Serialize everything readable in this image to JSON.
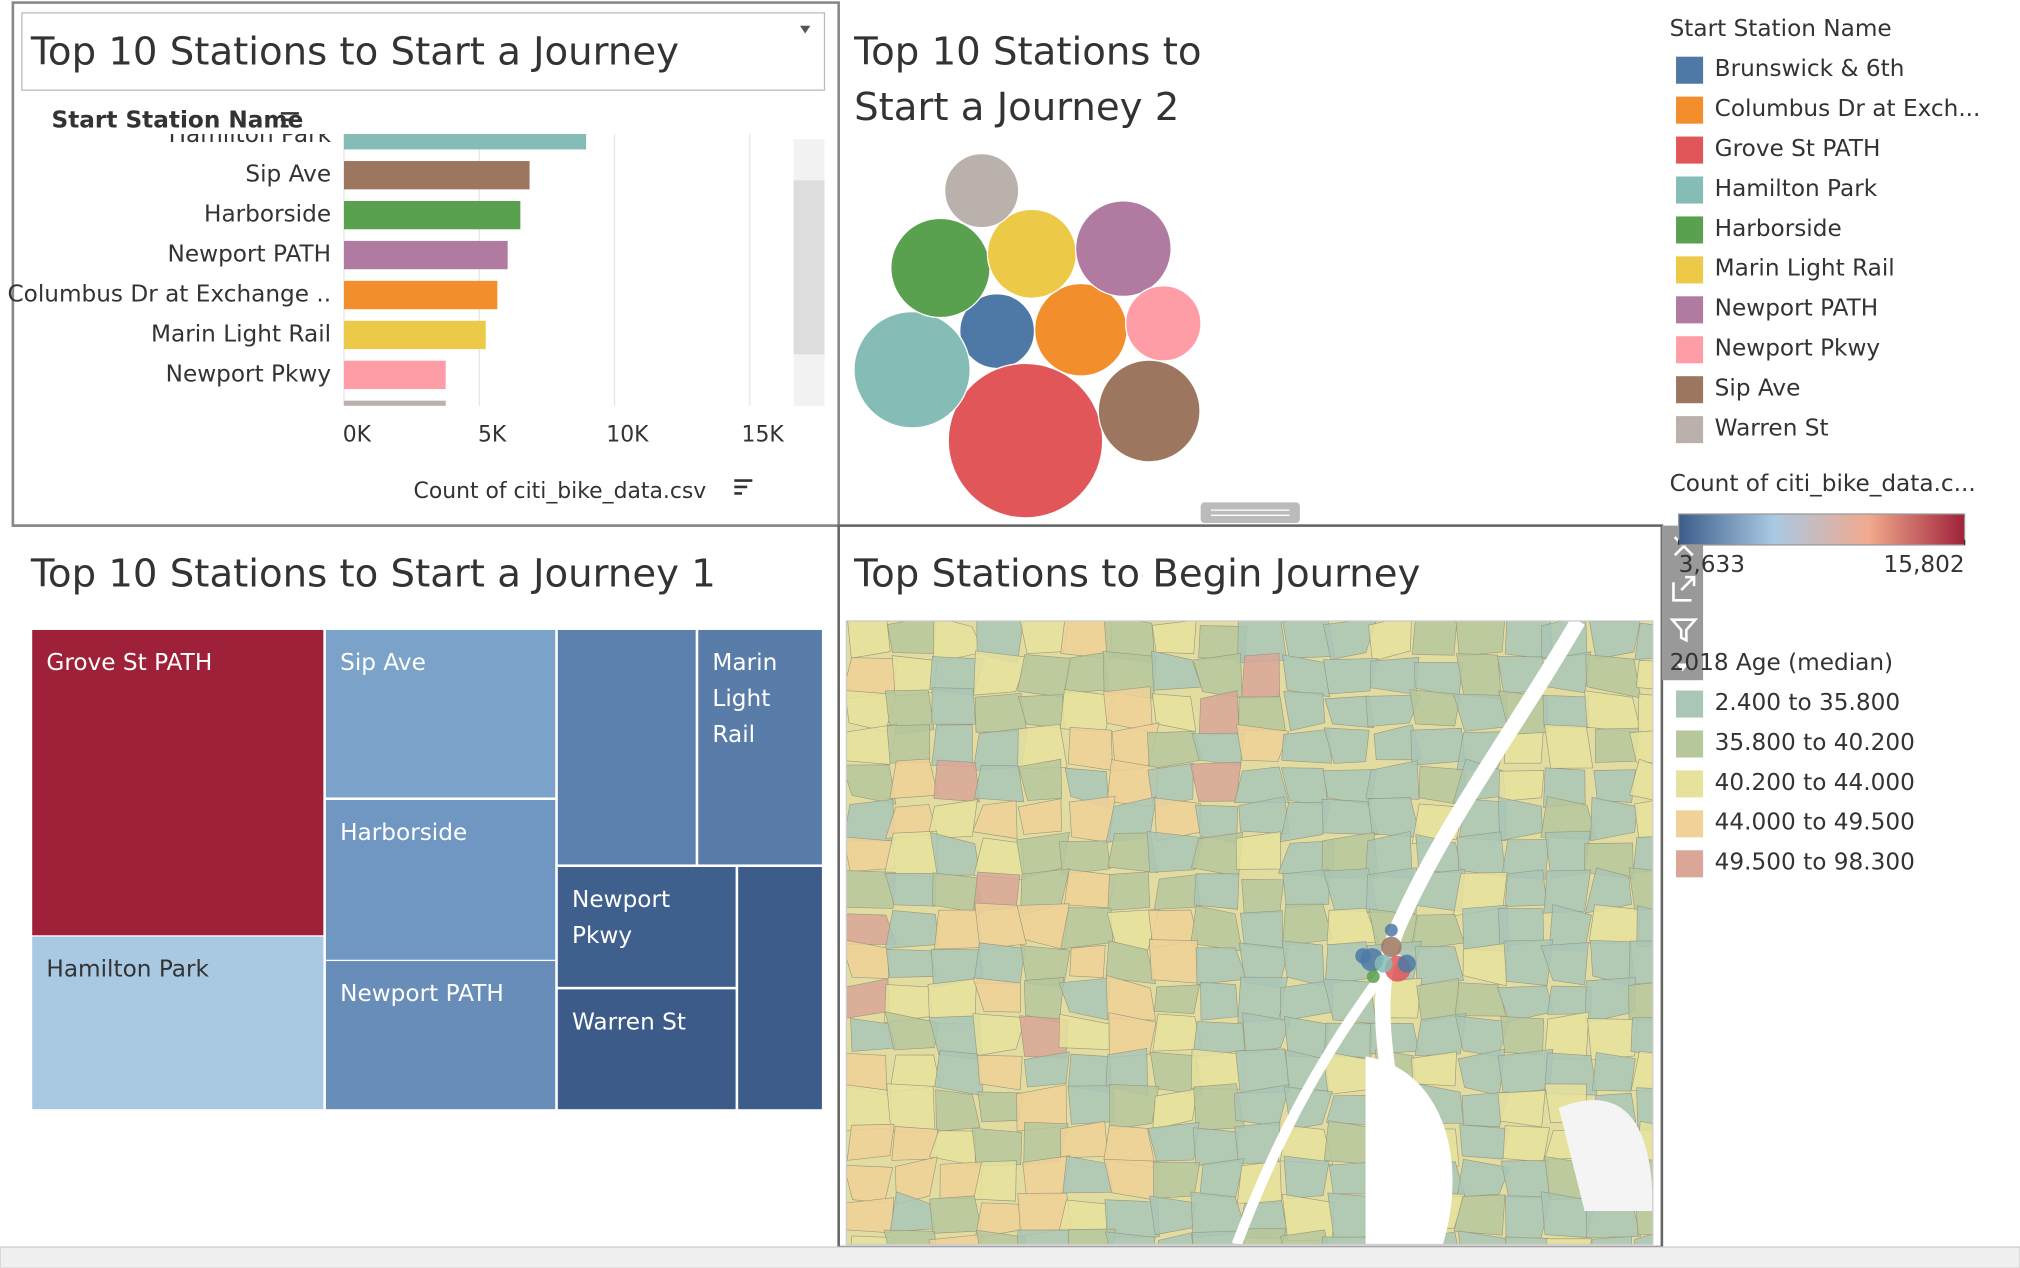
{
  "bar_chart": {
    "type": "bar",
    "title": "Top 10 Stations to Start a Journey",
    "y_label": "Start Station Name",
    "x_label": "Count of citi_bike_data.csv",
    "categories": [
      "Hamilton Park",
      "Sip Ave",
      "Harborside",
      "Newport PATH",
      "Columbus Dr at Exchange ..",
      "Marin Light Rail",
      "Newport Pkwy"
    ],
    "values": [
      8950,
      6860,
      6520,
      6050,
      5670,
      5240,
      3760
    ],
    "colors": [
      "#86bcb6",
      "#9d7660",
      "#59a14f",
      "#b07aa1",
      "#f28e2b",
      "#edc948",
      "#ff9da7"
    ],
    "xlim": [
      0,
      16500
    ],
    "xticks": [
      {
        "value": 0,
        "label": "0K"
      },
      {
        "value": 5000,
        "label": "5K"
      },
      {
        "value": 10000,
        "label": "10K"
      },
      {
        "value": 15000,
        "label": "15K"
      }
    ],
    "grid": true
  },
  "bubble_chart": {
    "type": "bubble",
    "title": "Top 10 Stations to Start a Journey 2",
    "values": [
      3700,
      5670,
      15802,
      8950,
      6520,
      5240,
      6050,
      3760,
      6860,
      3633
    ]
  },
  "legend": {
    "title": "Start Station Name",
    "names": [
      "Brunswick & 6th",
      "Columbus Dr at Exch...",
      "Grove St PATH",
      "Hamilton Park",
      "Harborside",
      "Marin Light Rail",
      "Newport PATH",
      "Newport Pkwy",
      "Sip Ave",
      "Warren St"
    ],
    "colors": [
      "#4e79a7",
      "#f28e2b",
      "#e15759",
      "#86bcb6",
      "#59a14f",
      "#edc948",
      "#b07aa1",
      "#ff9da7",
      "#9d7660",
      "#bab0ac"
    ]
  },
  "color_legend": {
    "title": "Count of citi_bike_data.c...",
    "lim": [
      3633,
      15802
    ],
    "ticks": [
      {
        "value": 3633,
        "label": "3,633"
      },
      {
        "value": 15802,
        "label": "15,802"
      }
    ],
    "colors": [
      "#3d5c8a",
      "#a9c9e3",
      "#f1a98d",
      "#9f2139"
    ]
  },
  "treemap": {
    "type": "treemap",
    "title": "Top 10 Stations to Start a Journey 1",
    "labels": [
      "Grove St PATH",
      "Hamilton Park",
      "Sip Ave",
      "Harborside",
      "Newport PATH",
      null,
      "Marin Light Rail",
      "Newport Pkwy",
      "Warren St",
      null
    ],
    "values": [
      15802,
      8950,
      6860,
      6520,
      6050,
      5670,
      5240,
      3760,
      3633,
      3700
    ],
    "colors": [
      "#9f2139",
      "#a9c9e3",
      "#7ba2c8",
      "#6f97c1",
      "#678db8",
      "#5c80ae",
      "#5a7ca9",
      "#3f5f8c",
      "#3c5b88",
      "#3d5c8a"
    ]
  },
  "map": {
    "title": "Top Stations to Begin Journey",
    "legend_title": "2018 Age (median)",
    "ranges": [
      "2.400 to 35.800",
      "35.800 to 40.200",
      "40.200 to 44.000",
      "44.000 to 49.500",
      "49.500 to 98.300"
    ],
    "colors": [
      "#a9c6b6",
      "#b6c79c",
      "#e6e29c",
      "#f0d197",
      "#d9a698"
    ]
  }
}
